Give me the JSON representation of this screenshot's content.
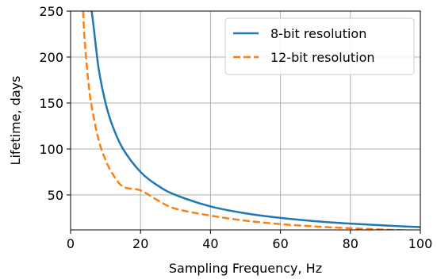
{
  "chart_data": {
    "type": "line",
    "xlabel": "Sampling Frequency, Hz",
    "ylabel": "Lifetime, days",
    "xlim": [
      0,
      100
    ],
    "ylim": [
      12,
      250
    ],
    "x_ticks": [
      0,
      20,
      40,
      60,
      80,
      100
    ],
    "y_ticks": [
      50,
      100,
      150,
      200,
      250
    ],
    "grid": true,
    "legend_position": "top-right",
    "series": [
      {
        "name": "8-bit resolution",
        "color": "#1f77b4",
        "line_style": "solid",
        "x": [
          5,
          6,
          8,
          10,
          12,
          15,
          20,
          25,
          30,
          40,
          50,
          60,
          70,
          80,
          90,
          100
        ],
        "y": [
          250,
          250,
          188,
          150,
          125,
          100,
          75,
          60,
          50,
          37.5,
          30,
          25,
          21.4,
          18.8,
          16.7,
          15
        ]
      },
      {
        "name": "12-bit resolution",
        "color": "#ff7f0e",
        "line_style": "dashed",
        "x": [
          3.6,
          4,
          5,
          6,
          8,
          10,
          12,
          15,
          20,
          25,
          30,
          40,
          50,
          60,
          70,
          80,
          90,
          100
        ],
        "y": [
          250,
          220,
          176,
          147,
          110,
          88,
          73,
          59,
          55,
          44,
          35,
          27.5,
          22,
          18.3,
          15.7,
          13.8,
          12.2,
          11
        ]
      }
    ]
  }
}
